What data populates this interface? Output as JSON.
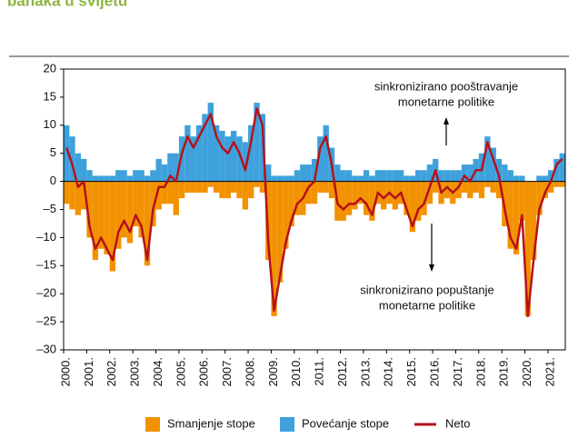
{
  "chart_data": {
    "type": "bar_line",
    "title": "banaka u svijetu",
    "annotations": [
      [
        "sinkronizirano pooštravanje",
        "monetarne politike"
      ],
      [
        "sinkronizirano popuštanje",
        "monetarne politike"
      ]
    ],
    "x": [
      2000,
      2000.25,
      2000.5,
      2000.75,
      2001,
      2001.25,
      2001.5,
      2001.75,
      2002,
      2002.25,
      2002.5,
      2002.75,
      2003,
      2003.25,
      2003.5,
      2003.75,
      2004,
      2004.25,
      2004.5,
      2004.75,
      2005,
      2005.25,
      2005.5,
      2005.75,
      2006,
      2006.25,
      2006.5,
      2006.75,
      2007,
      2007.25,
      2007.5,
      2007.75,
      2008,
      2008.25,
      2008.5,
      2008.75,
      2009,
      2009.25,
      2009.5,
      2009.75,
      2010,
      2010.25,
      2010.5,
      2010.75,
      2011,
      2011.25,
      2011.5,
      2011.75,
      2012,
      2012.25,
      2012.5,
      2012.75,
      2013,
      2013.25,
      2013.5,
      2013.75,
      2014,
      2014.25,
      2014.5,
      2014.75,
      2015,
      2015.25,
      2015.5,
      2015.75,
      2016,
      2016.25,
      2016.5,
      2016.75,
      2017,
      2017.25,
      2017.5,
      2017.75,
      2018,
      2018.25,
      2018.5,
      2018.75,
      2019,
      2019.25,
      2019.5,
      2019.75,
      2020,
      2020.25,
      2020.5,
      2020.75,
      2021,
      2021.25,
      2021.5
    ],
    "series": [
      {
        "name": "Smanjenje stope",
        "color": "#f39200",
        "kind": "bar",
        "values": [
          -4,
          -5,
          -6,
          -5,
          -10,
          -14,
          -12,
          -13,
          -16,
          -12,
          -10,
          -11,
          -8,
          -10,
          -15,
          -8,
          -5,
          -4,
          -4,
          -6,
          -3,
          -2,
          -2,
          -2,
          -2,
          -1,
          -2,
          -3,
          -3,
          -2,
          -3,
          -5,
          -3,
          -1,
          -2,
          -14,
          -24,
          -18,
          -12,
          -8,
          -6,
          -6,
          -4,
          -4,
          -2,
          -2,
          -3,
          -7,
          -7,
          -6,
          -5,
          -4,
          -6,
          -7,
          -4,
          -5,
          -4,
          -5,
          -4,
          -6,
          -9,
          -7,
          -6,
          -4,
          -2,
          -4,
          -3,
          -4,
          -3,
          -2,
          -3,
          -2,
          -3,
          -1,
          -2,
          -3,
          -8,
          -12,
          -13,
          -7,
          -24,
          -14,
          -6,
          -3,
          -2,
          -1,
          -1
        ]
      },
      {
        "name": "Povećanje stope",
        "color": "#3ea1dc",
        "kind": "bar",
        "values": [
          10,
          8,
          5,
          4,
          2,
          1,
          1,
          1,
          1,
          2,
          2,
          1,
          2,
          2,
          1,
          2,
          4,
          3,
          5,
          5,
          8,
          10,
          8,
          10,
          12,
          14,
          10,
          9,
          8,
          9,
          8,
          7,
          10,
          14,
          12,
          3,
          1,
          1,
          1,
          1,
          2,
          3,
          3,
          4,
          8,
          10,
          6,
          3,
          2,
          2,
          1,
          1,
          2,
          1,
          2,
          2,
          2,
          2,
          2,
          1,
          1,
          2,
          2,
          3,
          4,
          2,
          2,
          2,
          2,
          3,
          3,
          4,
          5,
          8,
          6,
          4,
          3,
          2,
          1,
          1,
          0,
          0,
          1,
          1,
          2,
          4,
          5
        ]
      },
      {
        "name": "Neto",
        "color": "#b5121b",
        "kind": "line",
        "values": [
          6,
          3,
          -1,
          0,
          -8,
          -12,
          -10,
          -12,
          -14,
          -9,
          -7,
          -9,
          -6,
          -8,
          -14,
          -5,
          -1,
          -1,
          1,
          0,
          5,
          8,
          6,
          8,
          10,
          12,
          8,
          6,
          5,
          7,
          5,
          2,
          7,
          13,
          10,
          -11,
          -23,
          -17,
          -11,
          -7,
          -4,
          -3,
          -1,
          0,
          6,
          8,
          3,
          -4,
          -5,
          -4,
          -4,
          -3,
          -4,
          -6,
          -2,
          -3,
          -2,
          -3,
          -2,
          -5,
          -8,
          -5,
          -4,
          -1,
          2,
          -2,
          -1,
          -2,
          -1,
          1,
          0,
          2,
          2,
          7,
          4,
          1,
          -5,
          -10,
          -12,
          -6,
          -24,
          -14,
          -5,
          -2,
          0,
          3,
          4
        ]
      }
    ],
    "xlim": [
      2000,
      2021.75
    ],
    "xticks": [
      {
        "value": 2000,
        "label": "2000."
      },
      {
        "value": 2001,
        "label": "2001."
      },
      {
        "value": 2002,
        "label": "2002."
      },
      {
        "value": 2003,
        "label": "2003."
      },
      {
        "value": 2004,
        "label": "2004."
      },
      {
        "value": 2005,
        "label": "2005."
      },
      {
        "value": 2006,
        "label": "2006."
      },
      {
        "value": 2007,
        "label": "2007."
      },
      {
        "value": 2008,
        "label": "2008."
      },
      {
        "value": 2009,
        "label": "2009."
      },
      {
        "value": 2010,
        "label": "2010."
      },
      {
        "value": 2011,
        "label": "2011."
      },
      {
        "value": 2012,
        "label": "2012."
      },
      {
        "value": 2013,
        "label": "2013."
      },
      {
        "value": 2014,
        "label": "2014."
      },
      {
        "value": 2015,
        "label": "2015."
      },
      {
        "value": 2016,
        "label": "2016."
      },
      {
        "value": 2017,
        "label": "2017."
      },
      {
        "value": 2018,
        "label": "2018."
      },
      {
        "value": 2019,
        "label": "2019."
      },
      {
        "value": 2020,
        "label": "2020."
      },
      {
        "value": 2021,
        "label": "2021."
      }
    ],
    "ylim": [
      -30,
      20
    ],
    "yticks": [
      -30,
      -25,
      -20,
      -15,
      -10,
      -5,
      0,
      5,
      10,
      15,
      20
    ],
    "yticklabels": [
      {
        "value": -30,
        "label": "–30"
      },
      {
        "value": -25,
        "label": "–25"
      },
      {
        "value": -20,
        "label": "–20"
      },
      {
        "value": -15,
        "label": "–15"
      },
      {
        "value": -10,
        "label": "–10"
      },
      {
        "value": -5,
        "label": "–5"
      }
    ],
    "grid": false
  }
}
